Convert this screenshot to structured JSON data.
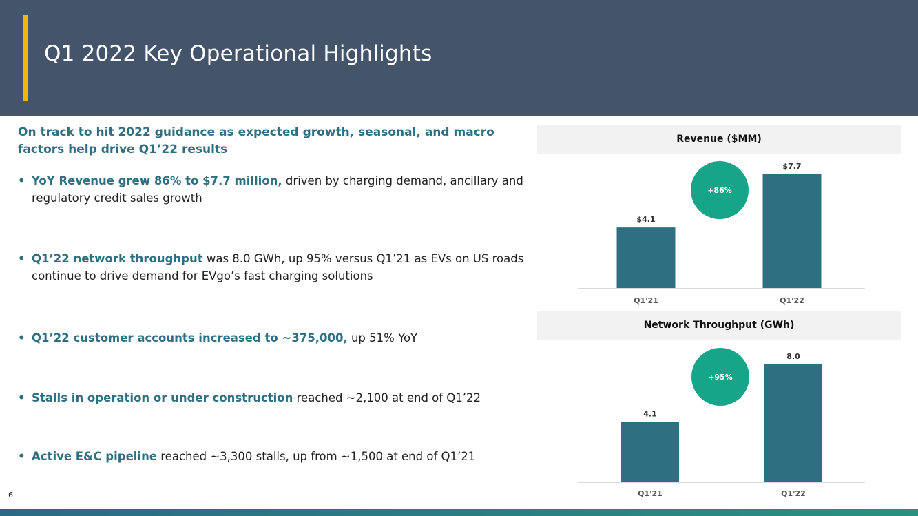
{
  "title": "Q1 2022 Key Operational Highlights",
  "intro": "On track to hit 2022 guidance as expected growth, seasonal, and macro factors help drive Q1’22 results",
  "bullets": [
    {
      "highlight": "YoY Revenue grew 86% to $7.7 million,",
      "text": " driven by charging demand, ancillary and regulatory credit sales growth"
    },
    {
      "highlight": "Q1’22 network throughput",
      "text": " was 8.0 GWh, up 95% versus Q1’21 as EVs on US roads continue to drive demand for EVgo’s fast charging solutions"
    },
    {
      "highlight": "Q1’22 customer accounts increased to ~375,000,",
      "text": " up 51% YoY"
    },
    {
      "highlight": "Stalls in operation or under construction",
      "text": " reached ~2,100 at end of Q1’22"
    },
    {
      "highlight": "Active E&C pipeline",
      "text": " reached ~3,300 stalls, up from ~1,500 at end of Q1’21"
    }
  ],
  "page_number": "6",
  "colors": {
    "header_bg": "#44546a",
    "accent": "#f2b705",
    "highlight_text": "#2e6f82",
    "bar": "#2e6f82",
    "growth_badge": "#17a58a"
  },
  "chart_data": [
    {
      "type": "bar",
      "title": "Revenue ($MM)",
      "categories": [
        "Q1'21",
        "Q1'22"
      ],
      "values": [
        4.1,
        7.7
      ],
      "data_labels": [
        "$4.1",
        "$7.7"
      ],
      "growth_label": "+86%",
      "ylim": [
        0,
        7.7
      ]
    },
    {
      "type": "bar",
      "title": "Network Throughput (GWh)",
      "categories": [
        "Q1'21",
        "Q1'22"
      ],
      "values": [
        4.1,
        8.0
      ],
      "data_labels": [
        "4.1",
        "8.0"
      ],
      "growth_label": "+95%",
      "ylim": [
        0,
        8.0
      ]
    }
  ]
}
